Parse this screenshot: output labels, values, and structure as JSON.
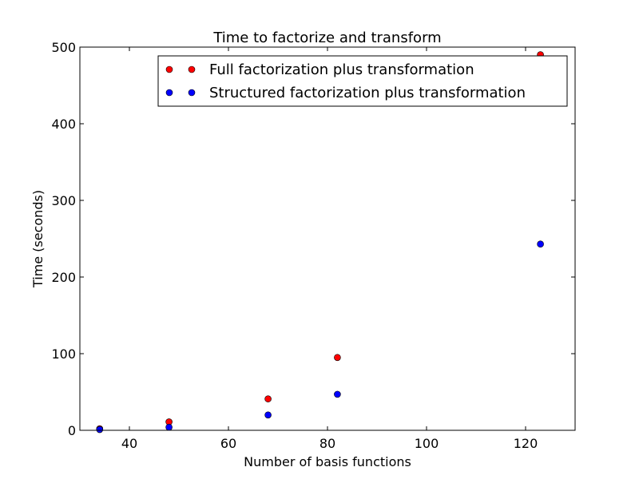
{
  "chart_data": {
    "type": "scatter",
    "title": "Time to factorize and transform",
    "xlabel": "Number of basis functions",
    "ylabel": "Time (seconds)",
    "xlim": [
      30,
      130
    ],
    "ylim": [
      0,
      500
    ],
    "xticks": [
      40,
      60,
      80,
      100,
      120
    ],
    "yticks": [
      0,
      100,
      200,
      300,
      400,
      500
    ],
    "grid": false,
    "legend_position": "top-right",
    "series": [
      {
        "name": "Full factorization plus transformation",
        "color": "#ff0000",
        "x": [
          34,
          48,
          68,
          82,
          123
        ],
        "y": [
          2,
          11,
          41,
          95,
          490
        ]
      },
      {
        "name": "Structured factorization plus transformation",
        "color": "#0000ff",
        "x": [
          34,
          48,
          68,
          82,
          123
        ],
        "y": [
          1,
          4,
          20,
          47,
          243
        ]
      }
    ]
  }
}
